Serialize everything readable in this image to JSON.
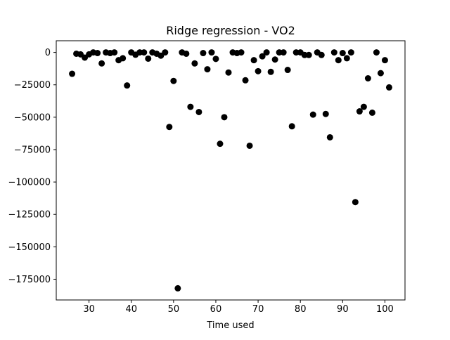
{
  "chart_data": {
    "type": "scatter",
    "title": "Ridge regression - VO2",
    "xlabel": "Time used",
    "ylabel": "",
    "xlim": [
      22.25,
      104.75
    ],
    "ylim": [
      -191000,
      9000
    ],
    "xticks": [
      30,
      40,
      50,
      60,
      70,
      80,
      90,
      100
    ],
    "yticks": [
      0,
      -25000,
      -50000,
      -75000,
      -100000,
      -125000,
      -150000,
      -175000
    ],
    "xtick_labels": [
      "30",
      "40",
      "50",
      "60",
      "70",
      "80",
      "90",
      "100"
    ],
    "ytick_labels": [
      "0",
      "−25000",
      "−50000",
      "−75000",
      "−100000",
      "−125000",
      "−150000",
      "−175000"
    ],
    "grid": false,
    "marker_color": "#000000",
    "points": [
      [
        26,
        -16500
      ],
      [
        27,
        -1000
      ],
      [
        28,
        -1500
      ],
      [
        29,
        -4000
      ],
      [
        30,
        -1500
      ],
      [
        31,
        0
      ],
      [
        32,
        -500
      ],
      [
        33,
        -8500
      ],
      [
        34,
        0
      ],
      [
        35,
        -500
      ],
      [
        36,
        0
      ],
      [
        37,
        -6000
      ],
      [
        38,
        -4500
      ],
      [
        39,
        -25500
      ],
      [
        40,
        0
      ],
      [
        41,
        -1800
      ],
      [
        42,
        0
      ],
      [
        43,
        0
      ],
      [
        44,
        -4800
      ],
      [
        45,
        0
      ],
      [
        46,
        -1000
      ],
      [
        47,
        -2500
      ],
      [
        48,
        0
      ],
      [
        49,
        -57500
      ],
      [
        50,
        -22000
      ],
      [
        51,
        -182000
      ],
      [
        52,
        0
      ],
      [
        53,
        -1000
      ],
      [
        54,
        -42000
      ],
      [
        55,
        -8500
      ],
      [
        56,
        -46000
      ],
      [
        57,
        -500
      ],
      [
        58,
        -13000
      ],
      [
        59,
        0
      ],
      [
        60,
        -5000
      ],
      [
        61,
        -70500
      ],
      [
        62,
        -50000
      ],
      [
        63,
        -15500
      ],
      [
        64,
        0
      ],
      [
        65,
        -500
      ],
      [
        66,
        0
      ],
      [
        67,
        -21500
      ],
      [
        68,
        -72000
      ],
      [
        69,
        -6000
      ],
      [
        70,
        -14500
      ],
      [
        71,
        -3000
      ],
      [
        72,
        0
      ],
      [
        73,
        -15000
      ],
      [
        74,
        -5500
      ],
      [
        75,
        0
      ],
      [
        76,
        0
      ],
      [
        77,
        -13500
      ],
      [
        78,
        -57000
      ],
      [
        79,
        0
      ],
      [
        80,
        0
      ],
      [
        81,
        -2000
      ],
      [
        82,
        -2000
      ],
      [
        83,
        -48000
      ],
      [
        84,
        0
      ],
      [
        85,
        -2000
      ],
      [
        86,
        -47500
      ],
      [
        87,
        -65500
      ],
      [
        88,
        0
      ],
      [
        89,
        -6000
      ],
      [
        90,
        -500
      ],
      [
        91,
        -4500
      ],
      [
        92,
        0
      ],
      [
        93,
        -115500
      ],
      [
        94,
        -45500
      ],
      [
        95,
        -42000
      ],
      [
        96,
        -20000
      ],
      [
        97,
        -46500
      ],
      [
        98,
        0
      ],
      [
        99,
        -16000
      ],
      [
        100,
        -6000
      ],
      [
        101,
        -27000
      ]
    ]
  }
}
